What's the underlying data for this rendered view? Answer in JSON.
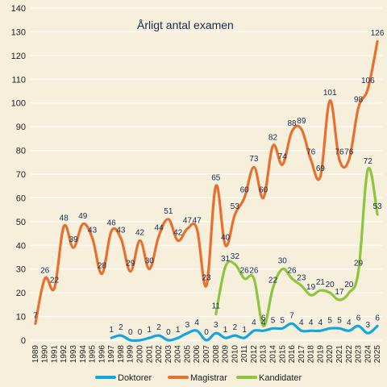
{
  "chart_data": {
    "type": "line",
    "title": "Årligt antal examen",
    "xlabel": "",
    "ylabel": "",
    "ylim": [
      0,
      140
    ],
    "yticks": [
      0,
      10,
      20,
      30,
      40,
      50,
      60,
      70,
      80,
      90,
      100,
      110,
      120,
      130,
      140
    ],
    "grid": true,
    "legend": "bottom",
    "x": [
      "1989",
      "1990",
      "1991",
      "1992",
      "1993",
      "1994",
      "1995",
      "1996",
      "1997",
      "1998",
      "1999",
      "2000",
      "2001",
      "2002",
      "2003",
      "2004",
      "2005",
      "2006",
      "2007",
      "2008",
      "2009",
      "2010",
      "2011",
      "2012",
      "2013",
      "2014",
      "2015",
      "2016",
      "2017",
      "2018",
      "2019",
      "2020",
      "2021",
      "2022",
      "2023",
      "2024",
      "2025"
    ],
    "series": [
      {
        "name": "Doktorer",
        "color": "#12a6e0",
        "values": [
          null,
          null,
          null,
          null,
          null,
          null,
          null,
          null,
          1,
          2,
          0,
          0,
          1,
          2,
          0,
          1,
          3,
          4,
          0,
          3,
          1,
          2,
          1,
          4,
          4,
          5,
          5,
          7,
          4,
          4,
          4,
          5,
          5,
          4,
          6,
          3,
          6
        ]
      },
      {
        "name": "Magistrar",
        "color": "#e8702e",
        "values": [
          7,
          26,
          22,
          48,
          39,
          49,
          43,
          28,
          46,
          43,
          29,
          42,
          30,
          44,
          51,
          42,
          47,
          47,
          23,
          65,
          40,
          53,
          60,
          73,
          60,
          82,
          74,
          88,
          89,
          76,
          69,
          101,
          76,
          76,
          98,
          106,
          126
        ]
      },
      {
        "name": "Kandidater",
        "color": "#8cc63f",
        "values": [
          null,
          null,
          null,
          null,
          null,
          null,
          null,
          null,
          null,
          null,
          null,
          null,
          null,
          null,
          null,
          null,
          null,
          null,
          null,
          11,
          31,
          32,
          26,
          26,
          6,
          22,
          30,
          26,
          23,
          19,
          21,
          20,
          17,
          20,
          29,
          72,
          53
        ]
      }
    ]
  }
}
